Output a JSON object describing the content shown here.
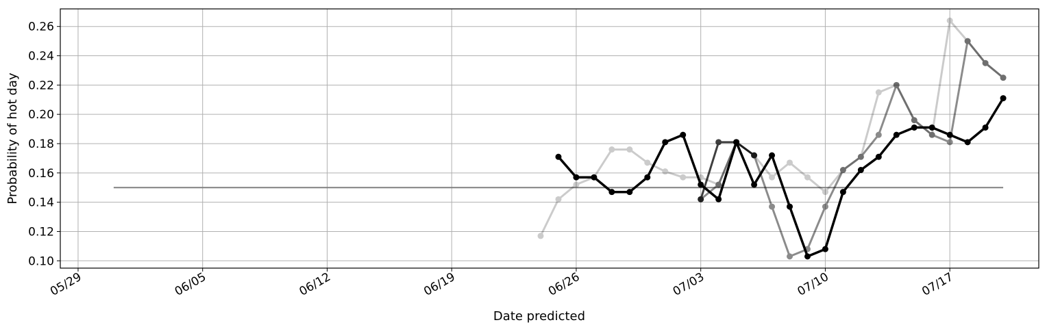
{
  "chart_data": {
    "type": "line",
    "title": "",
    "xlabel": "Date predicted",
    "ylabel": "Probability of hot day",
    "x_tick_labels": [
      "05/29",
      "06/05",
      "06/12",
      "06/19",
      "06/26",
      "07/03",
      "07/10",
      "07/17"
    ],
    "y_tick_labels": [
      "0.10",
      "0.12",
      "0.14",
      "0.16",
      "0.18",
      "0.20",
      "0.22",
      "0.24",
      "0.26"
    ],
    "x_axis": {
      "type": "date",
      "range": [
        "05/28",
        "07/22"
      ]
    },
    "y_axis": {
      "range": [
        0.095,
        0.272
      ],
      "ticks": [
        0.1,
        0.12,
        0.14,
        0.16,
        0.18,
        0.2,
        0.22,
        0.24,
        0.26
      ]
    },
    "grid": true,
    "reference_line": {
      "x_start": "05/31",
      "x_end": "07/20",
      "y": 0.15,
      "color": "#808080"
    },
    "series": [
      {
        "color": "#000000",
        "opacity": 0.2,
        "x": [
          "06/24",
          "06/25",
          "06/26",
          "06/27",
          "06/28",
          "06/29",
          "06/30",
          "07/01",
          "07/02",
          "07/03",
          "07/04",
          "07/05",
          "07/06",
          "07/07",
          "07/08",
          "07/09",
          "07/10",
          "07/11",
          "07/12",
          "07/13",
          "07/14",
          "07/15",
          "07/16",
          "07/17",
          "07/18",
          "07/19",
          "07/20"
        ],
        "y": [
          0.117,
          0.142,
          0.152,
          0.157,
          0.176,
          0.176,
          0.167,
          0.161,
          0.157,
          0.157,
          0.152,
          0.181,
          0.172,
          0.157,
          0.167,
          0.157,
          0.147,
          0.162,
          0.171,
          0.215,
          0.22,
          0.196,
          0.186,
          0.264,
          0.25,
          0.235,
          0.225
        ]
      },
      {
        "color": "#000000",
        "opacity": 0.45,
        "x": [
          "07/03",
          "07/04",
          "07/05",
          "07/06",
          "07/07",
          "07/08",
          "07/09",
          "07/10",
          "07/11",
          "07/12",
          "07/13",
          "07/14",
          "07/15",
          "07/16",
          "07/17",
          "07/18",
          "07/19",
          "07/20"
        ],
        "y": [
          0.142,
          0.152,
          0.181,
          0.172,
          0.137,
          0.103,
          0.108,
          0.137,
          0.162,
          0.171,
          0.186,
          0.22,
          0.196,
          0.186,
          0.181,
          0.25,
          0.235,
          0.225
        ]
      },
      {
        "color": "#000000",
        "opacity": 0.75,
        "x": [
          "07/03",
          "07/04",
          "07/05",
          "07/06"
        ],
        "y": [
          0.142,
          0.181,
          0.181,
          0.172
        ]
      },
      {
        "color": "#000000",
        "opacity": 1.0,
        "x": [
          "06/25",
          "06/26",
          "06/27",
          "06/28",
          "06/29",
          "06/30",
          "07/01",
          "07/02",
          "07/03",
          "07/04",
          "07/05",
          "07/06",
          "07/07",
          "07/08",
          "07/09",
          "07/10",
          "07/11",
          "07/12",
          "07/13",
          "07/14",
          "07/15",
          "07/16",
          "07/17",
          "07/18",
          "07/19",
          "07/20"
        ],
        "y": [
          0.171,
          0.157,
          0.157,
          0.147,
          0.147,
          0.157,
          0.181,
          0.186,
          0.152,
          0.142,
          0.181,
          0.152,
          0.172,
          0.137,
          0.103,
          0.108,
          0.147,
          0.162,
          0.171,
          0.186,
          0.191,
          0.191,
          0.186,
          0.181,
          0.191,
          0.211
        ]
      }
    ]
  }
}
